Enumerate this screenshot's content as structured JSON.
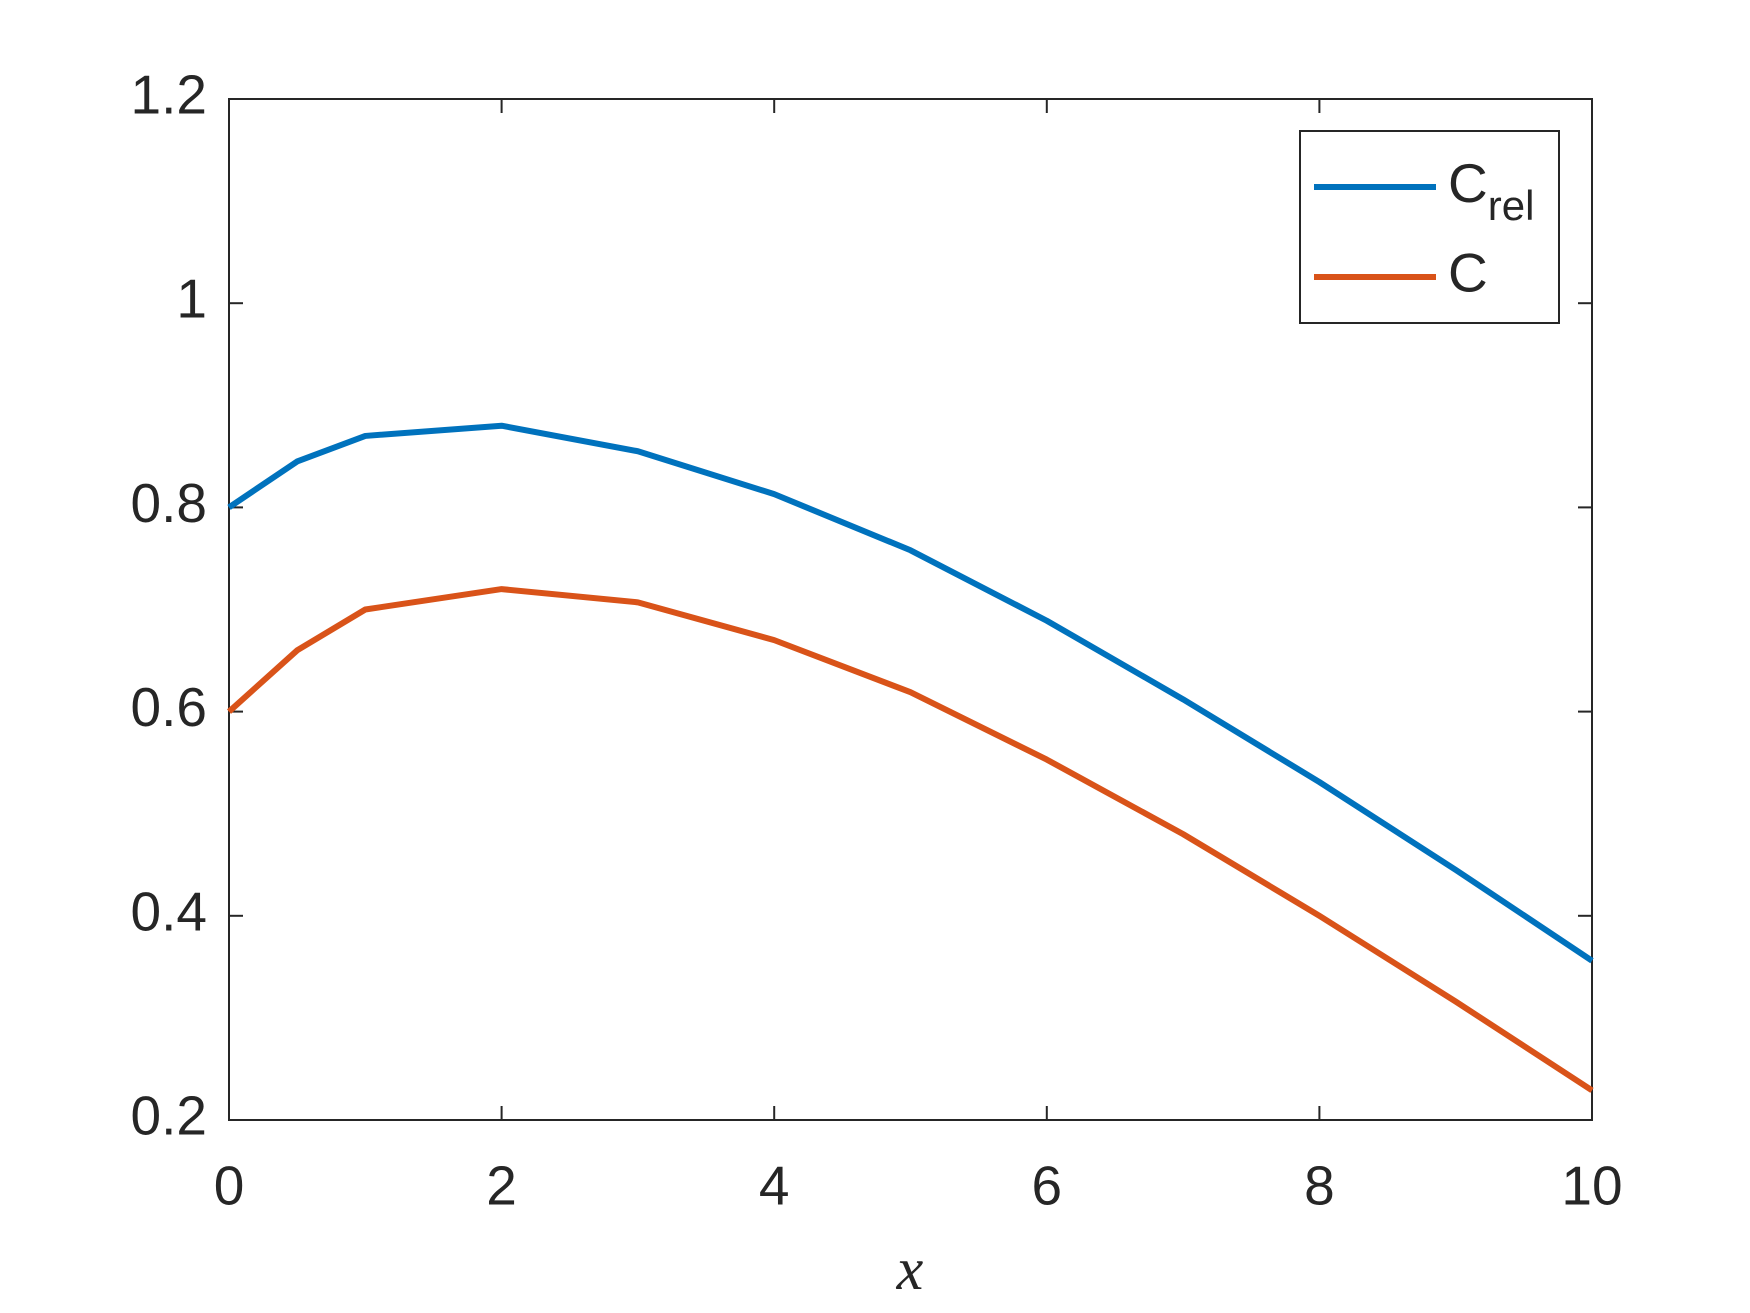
{
  "chart_data": {
    "type": "line",
    "xlabel": "x",
    "x": [
      0,
      0.5,
      1,
      2,
      3,
      4,
      5,
      6,
      7,
      8,
      9,
      10
    ],
    "series": [
      {
        "name": "C_{rel}",
        "color": "#0072bd",
        "values": [
          0.8,
          0.845,
          0.87,
          0.88,
          0.855,
          0.813,
          0.758,
          0.689,
          0.612,
          0.531,
          0.445,
          0.356
        ]
      },
      {
        "name": "C",
        "color": "#d95319",
        "values": [
          0.6,
          0.66,
          0.7,
          0.72,
          0.707,
          0.67,
          0.619,
          0.553,
          0.48,
          0.4,
          0.316,
          0.229
        ]
      }
    ],
    "xlim": [
      0,
      10
    ],
    "xticks": [
      0,
      2,
      4,
      6,
      8,
      10
    ],
    "ylim": [
      0.2,
      1.2
    ],
    "yticks": [
      0.2,
      0.4,
      0.6,
      0.8,
      1,
      1.2
    ],
    "grid": false,
    "legend": "northeast"
  }
}
